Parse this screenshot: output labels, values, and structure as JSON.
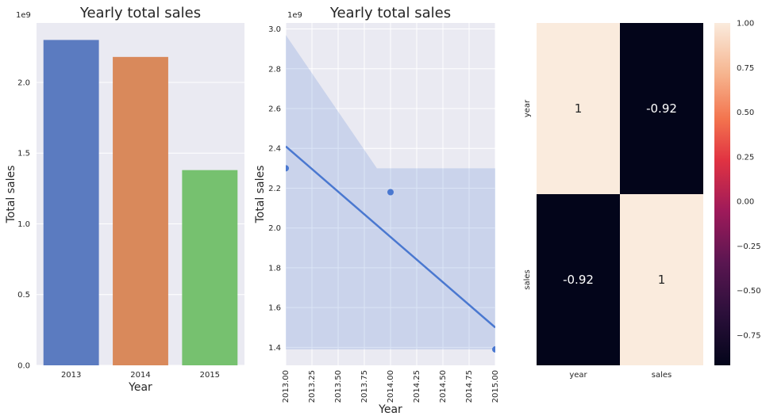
{
  "chart_data": [
    {
      "type": "bar",
      "title": "Yearly total sales",
      "xlabel": "Year",
      "ylabel": "Total sales",
      "y_multiplier": "1e9",
      "categories": [
        "2013",
        "2014",
        "2015"
      ],
      "values": [
        2.3,
        2.18,
        1.38
      ],
      "colors": [
        "#5b7bc0",
        "#d9895b",
        "#76c16f"
      ],
      "ylim": [
        0,
        2.42
      ],
      "yticks": [
        "0.0",
        "0.5",
        "1.0",
        "1.5",
        "2.0"
      ],
      "grid": true
    },
    {
      "type": "scatter",
      "title": "Yearly total sales",
      "xlabel": "Year",
      "ylabel": "Total sales",
      "y_multiplier": "1e9",
      "points": [
        {
          "x": 2013.0,
          "y": 2.3
        },
        {
          "x": 2014.0,
          "y": 2.18
        },
        {
          "x": 2015.0,
          "y": 1.39
        }
      ],
      "regression_line": {
        "start": {
          "x": 2013.0,
          "y": 2.41
        },
        "end": {
          "x": 2015.0,
          "y": 1.5
        }
      },
      "confidence_band": {
        "upper": [
          {
            "x": 2013.0,
            "y": 2.97
          },
          {
            "x": 2013.87,
            "y": 2.3
          },
          {
            "x": 2015.0,
            "y": 2.3
          }
        ],
        "lower": [
          {
            "x": 2013.0,
            "y": 1.39
          },
          {
            "x": 2015.0,
            "y": 1.39
          }
        ]
      },
      "xlim": [
        2013.0,
        2015.0
      ],
      "ylim": [
        1.31,
        3.03
      ],
      "xticks": [
        "2013.00",
        "2013.25",
        "2013.50",
        "2013.75",
        "2014.00",
        "2014.25",
        "2014.50",
        "2014.75",
        "2015.00"
      ],
      "yticks": [
        "1.4",
        "1.6",
        "1.8",
        "2.0",
        "2.2",
        "2.4",
        "2.6",
        "2.8",
        "3.0"
      ],
      "color": "#4a78d0",
      "grid": true
    },
    {
      "type": "heatmap",
      "rows": [
        "year",
        "sales"
      ],
      "columns": [
        "year",
        "sales"
      ],
      "values": [
        [
          1,
          -0.92
        ],
        [
          -0.92,
          1
        ]
      ],
      "cell_text": [
        [
          "1",
          "-0.92"
        ],
        [
          "-0.92",
          "1"
        ]
      ],
      "colorbar_range": [
        -0.92,
        1.0
      ],
      "colorbar_ticks": [
        "1.00",
        "0.75",
        "0.50",
        "0.25",
        "0.00",
        "−0.25",
        "−0.50",
        "−0.75"
      ],
      "colormap": "rocket"
    }
  ]
}
